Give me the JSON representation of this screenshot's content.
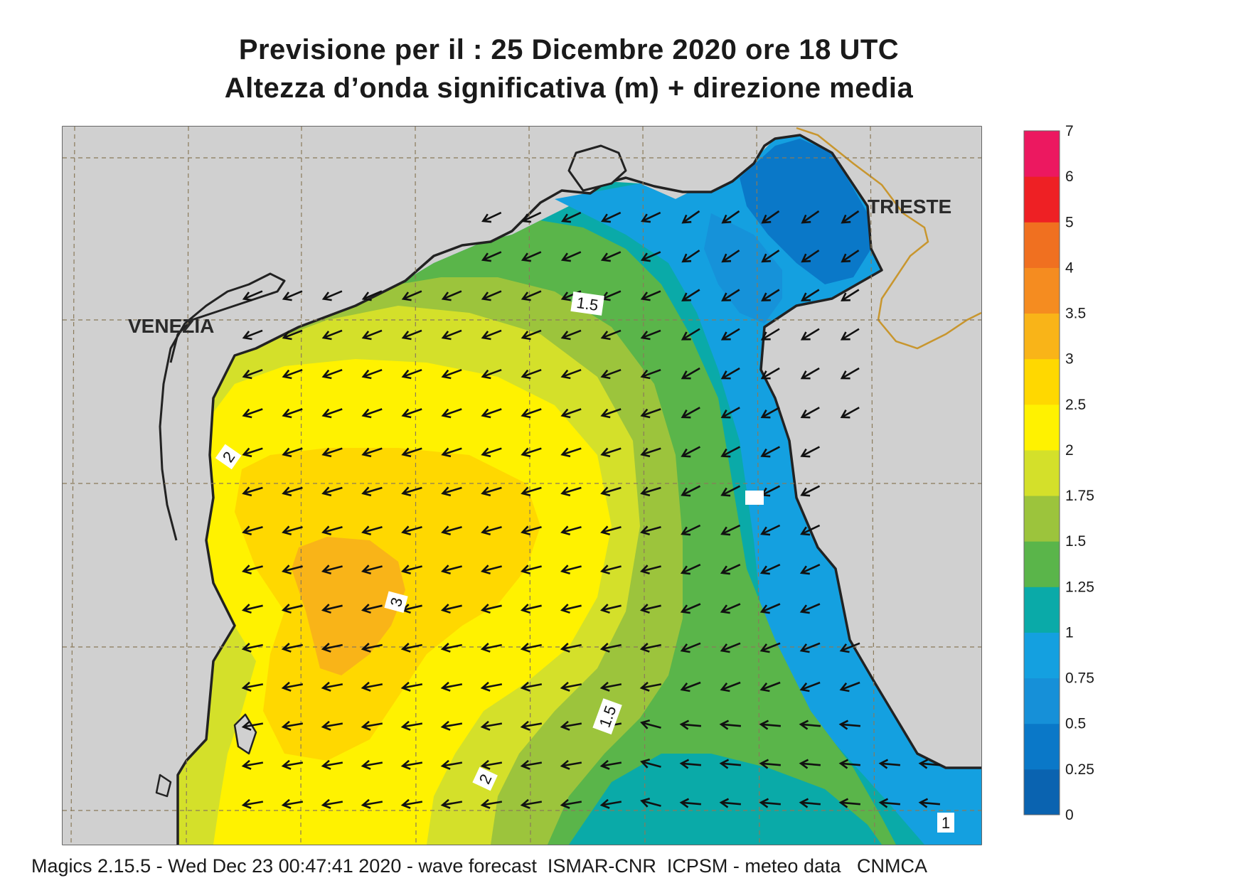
{
  "header": {
    "title_line1": "Previsione per il  :  25 Dicembre  2020   ore 18 UTC",
    "title_line2": "Altezza d’onda significativa (m) + direzione media"
  },
  "map": {
    "place_labels": [
      "VENEZIA",
      "TRIESTE"
    ],
    "contour_labels": [
      "1.5",
      "2",
      "3",
      "1.5",
      "2",
      "1"
    ],
    "colors": {
      "land": "#d0d0d0",
      "coastline": "#222222",
      "border": "#c8962e",
      "grid": "#8a7a5a"
    }
  },
  "colorbar": {
    "levels": [
      "0",
      "0.25",
      "0.5",
      "0.75",
      "1",
      "1.25",
      "1.5",
      "1.75",
      "2",
      "2.5",
      "3",
      "3.5",
      "4",
      "5",
      "6",
      "7"
    ],
    "colors": [
      "#0a63b0",
      "#0a78c8",
      "#1690d8",
      "#14a0e0",
      "#0aaaa8",
      "#5ab54a",
      "#9cc43c",
      "#d4e02a",
      "#fff200",
      "#ffd800",
      "#f9b418",
      "#f58c20",
      "#f07020",
      "#ee2024",
      "#ec1860"
    ]
  },
  "footer": {
    "text": "Magics 2.15.5 - Wed Dec 23 00:47:41 2020 - wave forecast  ISMAR-CNR  ICPSM - meteo data   CNMCA"
  }
}
